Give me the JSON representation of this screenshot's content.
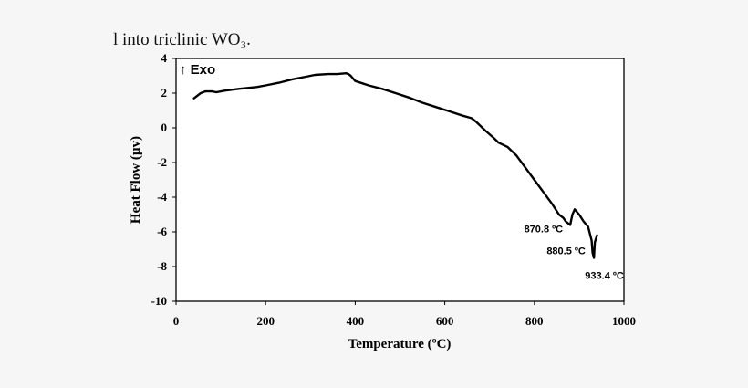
{
  "caption_text": "l into triclinic WO₃.",
  "chart_data": {
    "type": "line",
    "xlabel": "Temperature (ºC)",
    "ylabel": "Heat Flow (µv)",
    "xlim": [
      0,
      1000
    ],
    "ylim": [
      -10,
      4
    ],
    "xticks": [
      0,
      200,
      400,
      600,
      800,
      1000
    ],
    "yticks": [
      4,
      2,
      0,
      -2,
      -4,
      -6,
      -8,
      -10
    ],
    "grid": false,
    "exo_label": "↑ Exo",
    "series": [
      {
        "x": [
          40,
          55,
          65,
          80,
          90,
          110,
          140,
          180,
          200,
          230,
          260,
          290,
          310,
          340,
          360,
          380,
          385,
          390,
          400,
          430,
          460,
          490,
          520,
          550,
          580,
          610,
          640,
          660,
          670,
          690,
          710,
          720,
          740,
          760,
          780,
          800,
          820,
          840,
          855,
          865,
          870,
          880,
          885,
          890,
          900,
          910,
          920,
          928,
          930,
          933,
          935,
          940
        ],
        "y": [
          1.7,
          2.0,
          2.1,
          2.1,
          2.05,
          2.15,
          2.25,
          2.35,
          2.45,
          2.6,
          2.8,
          2.95,
          3.05,
          3.1,
          3.1,
          3.15,
          3.1,
          3.0,
          2.7,
          2.45,
          2.25,
          2.0,
          1.75,
          1.45,
          1.2,
          0.95,
          0.7,
          0.55,
          0.35,
          -0.15,
          -0.6,
          -0.85,
          -1.1,
          -1.6,
          -2.3,
          -3.0,
          -3.7,
          -4.4,
          -5.0,
          -5.2,
          -5.4,
          -5.6,
          -5.0,
          -4.7,
          -5.0,
          -5.4,
          -5.7,
          -6.5,
          -7.2,
          -7.5,
          -6.6,
          -6.2
        ]
      }
    ],
    "annotations": [
      {
        "text": "870.8 ºC",
        "x": 870.8,
        "y": -5.4
      },
      {
        "text": "880.5 ºC",
        "x": 880.5,
        "y": -5.6
      },
      {
        "text": "933.4 ºC",
        "x": 933.4,
        "y": -7.5
      }
    ]
  }
}
